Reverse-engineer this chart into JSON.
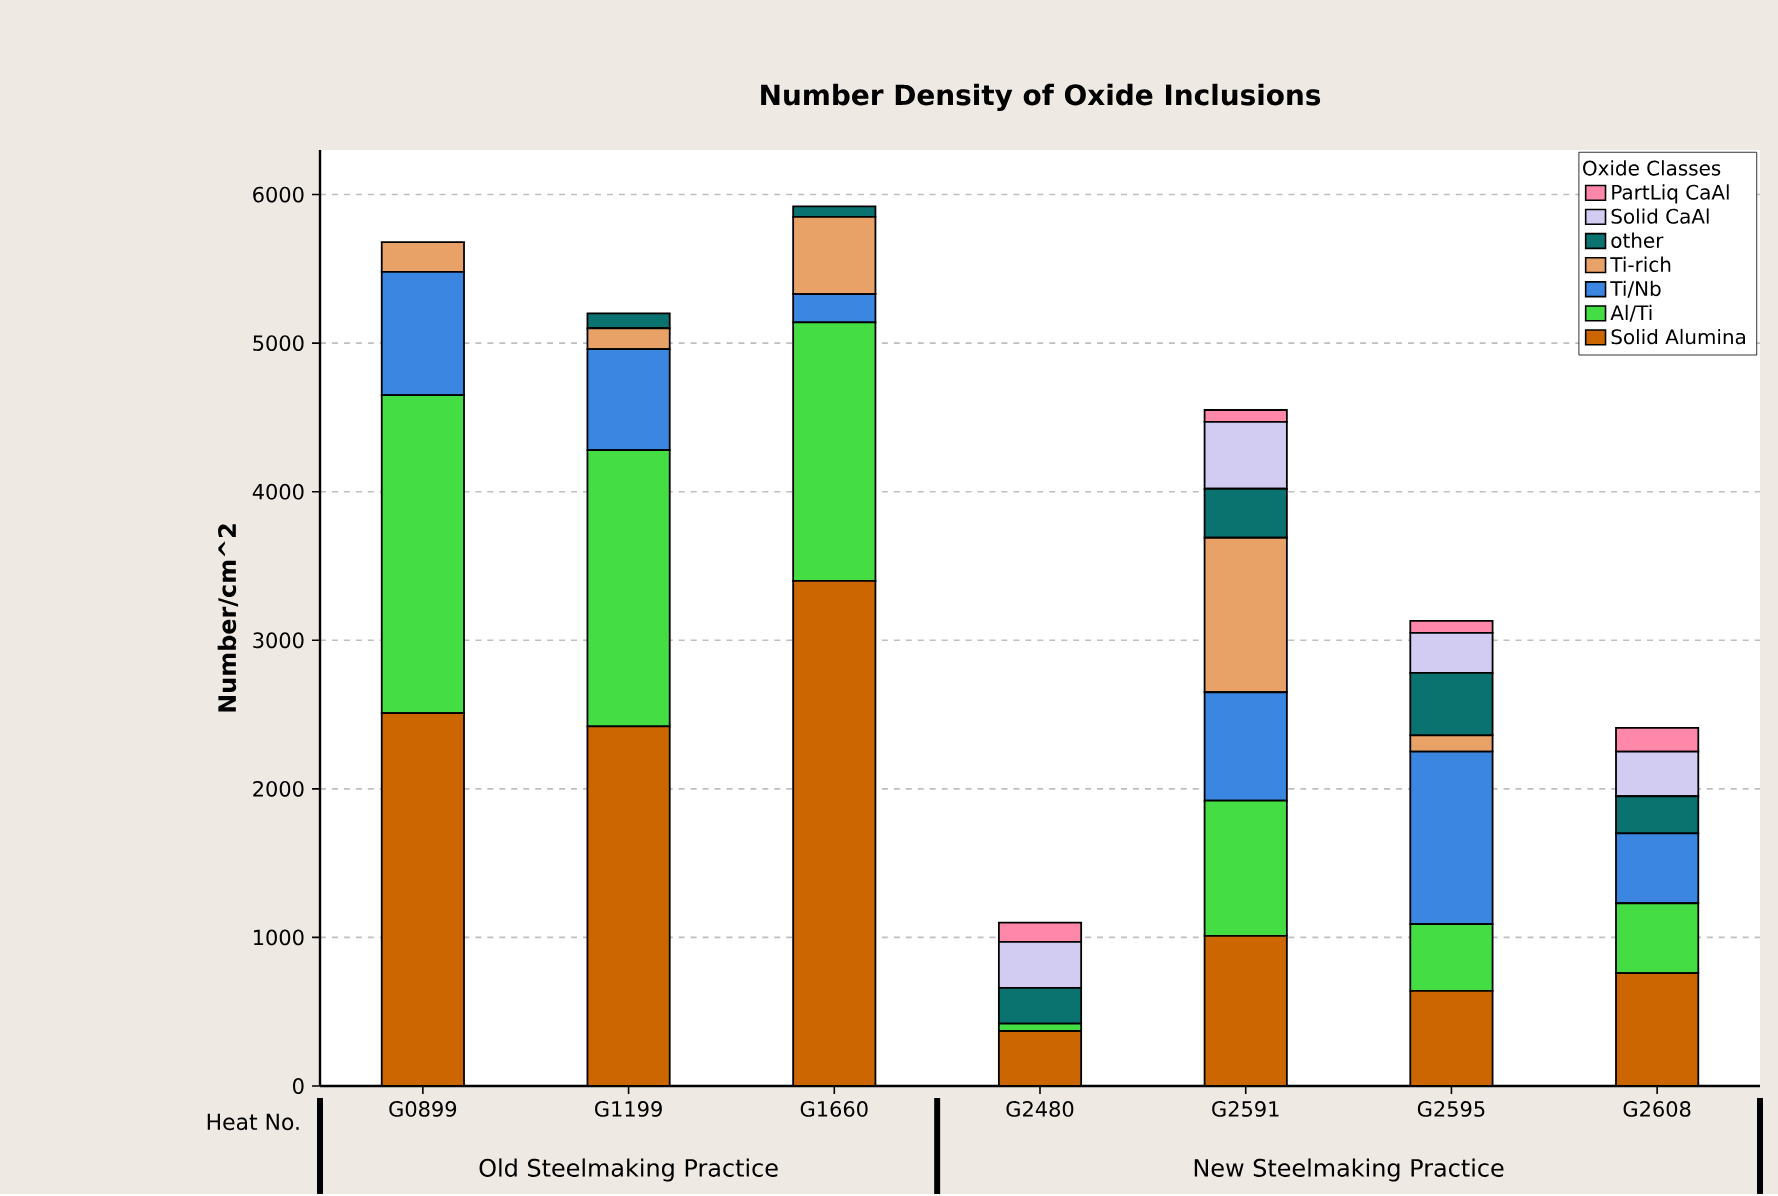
{
  "chart_data": {
    "type": "bar",
    "stacked": true,
    "title": "Number Density of Oxide Inclusions",
    "ylabel": "Number/cm^2",
    "legend_title": "Oxide Classes",
    "categories": [
      "G0899",
      "G1199",
      "G1660",
      "G2480",
      "G2591",
      "G2595",
      "G2608"
    ],
    "series": [
      {
        "name": "Solid Alumina",
        "color": "#cc6600",
        "values": [
          2510,
          2420,
          3400,
          370,
          1010,
          640,
          760
        ]
      },
      {
        "name": "Al/Ti",
        "color": "#44dd44",
        "values": [
          2140,
          1860,
          1740,
          50,
          910,
          450,
          470
        ]
      },
      {
        "name": "Ti/Nb",
        "color": "#3a86e0",
        "values": [
          830,
          680,
          190,
          0,
          730,
          1160,
          470
        ]
      },
      {
        "name": "Ti-rich",
        "color": "#e8a268",
        "values": [
          200,
          140,
          520,
          0,
          1040,
          110,
          0
        ]
      },
      {
        "name": "other",
        "color": "#0a7370",
        "values": [
          0,
          100,
          70,
          240,
          330,
          420,
          250
        ]
      },
      {
        "name": "Solid CaAl",
        "color": "#d2cbf2",
        "values": [
          0,
          0,
          0,
          310,
          450,
          270,
          300
        ]
      },
      {
        "name": "PartLiq CaAl",
        "color": "#ff88aa",
        "values": [
          0,
          0,
          0,
          130,
          80,
          80,
          160
        ]
      }
    ],
    "ylim": [
      0,
      6300
    ],
    "yticks": [
      0,
      1000,
      2000,
      3000,
      4000,
      5000,
      6000
    ],
    "grid": "y",
    "legend": "top right",
    "annotations": [
      "Heat No.",
      "Old Steelmaking Practice",
      "New Steelmaking Practice"
    ]
  }
}
